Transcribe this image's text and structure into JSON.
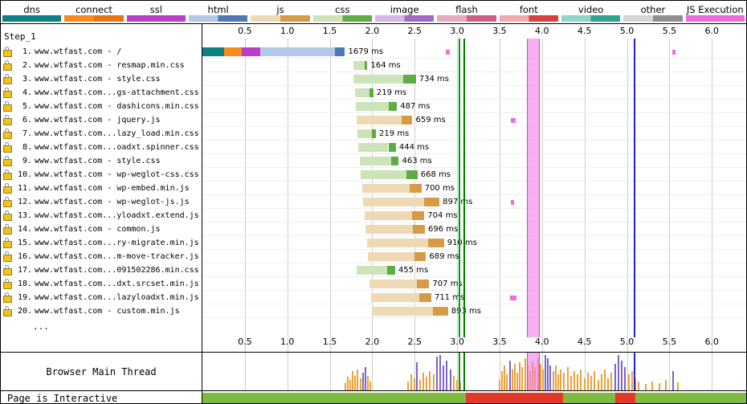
{
  "step_label": "Step_1",
  "ellipsis": "...",
  "labels": {
    "main_thread": "Browser Main Thread",
    "interactive": "Page is Interactive"
  },
  "legend": [
    {
      "label": "dns",
      "c1": "#0d8084",
      "c2": "#0d8084"
    },
    {
      "label": "connect",
      "c1": "#f78a1d",
      "c2": "#e87511"
    },
    {
      "label": "ssl",
      "c1": "#bb3ec7",
      "c2": "#bb3ec7"
    },
    {
      "label": "html",
      "c1": "#b3c7e6",
      "c2": "#4f79b5"
    },
    {
      "label": "js",
      "c1": "#eed9b5",
      "c2": "#d89b45"
    },
    {
      "label": "css",
      "c1": "#cde3ba",
      "c2": "#5cad44"
    },
    {
      "label": "image",
      "c1": "#d5b6e3",
      "c2": "#a468c8"
    },
    {
      "label": "flash",
      "c1": "#e9a8bb",
      "c2": "#cf5f82"
    },
    {
      "label": "font",
      "c1": "#f2a9a9",
      "c2": "#d94040"
    },
    {
      "label": "video",
      "c1": "#8fd5c9",
      "c2": "#2fa392"
    },
    {
      "label": "other",
      "c1": "#d5d5d5",
      "c2": "#8f8f8f"
    },
    {
      "label": "JS Execution",
      "c1": "#f06ae0",
      "c2": "#f06ae0"
    }
  ],
  "colors": {
    "dns": "#0d8084",
    "connect": "#f78a1d",
    "ssl": "#bb3ec7",
    "html_l": "#b3c7e6",
    "html_d": "#4f79b5",
    "js_l": "#eed9b5",
    "js_d": "#d89b45",
    "css_l": "#cde3ba",
    "css_d": "#5cad44",
    "jsexec": "#f06ae0",
    "grid": "#cccccc",
    "marker_render": "#00a000",
    "marker_fcp": "#007a00",
    "marker_dcl": "rgba(240,122,232,0.6)",
    "marker_dcl_edge": "#d944cf",
    "marker_onload": "#2323cc",
    "mt_script": "#e8a33d",
    "mt_layout": "#7d64c9",
    "int_ok": "#7fba41",
    "int_busy": "#e23a28"
  },
  "chart_data": {
    "type": "waterfall",
    "title": "WebPageTest request waterfall - Step_1",
    "time_unit": "seconds",
    "x_range_s": [
      0,
      6.42
    ],
    "axis_ticks": [
      "0.5",
      "1.0",
      "1.5",
      "2.0",
      "2.5",
      "3.0",
      "3.5",
      "4.0",
      "4.5",
      "5.0",
      "5.5",
      "6.0"
    ],
    "requests": [
      {
        "n": "1.",
        "url": "www.wtfast.com - /",
        "type": "html",
        "label": "1679 ms",
        "start_ms": 0,
        "dur_ms": 1679,
        "phases": [
          [
            "dns",
            0,
            255
          ],
          [
            "connect",
            255,
            460
          ],
          [
            "ssl",
            460,
            680
          ],
          [
            "ttfb",
            680,
            1560
          ],
          [
            "dl",
            1560,
            1679
          ]
        ]
      },
      {
        "n": "2.",
        "url": "www.wtfast.com - resmap.min.css",
        "type": "css",
        "label": "164 ms",
        "start_ms": 1780,
        "dur_ms": 164
      },
      {
        "n": "3.",
        "url": "www.wtfast.com - style.css",
        "type": "css",
        "label": "734 ms",
        "start_ms": 1780,
        "dur_ms": 734
      },
      {
        "n": "4.",
        "url": "www.wtfast.com...gs-attachment.css",
        "type": "css",
        "label": "219 ms",
        "start_ms": 1795,
        "dur_ms": 219
      },
      {
        "n": "5.",
        "url": "www.wtfast.com - dashicons.min.css",
        "type": "css",
        "label": "487 ms",
        "start_ms": 1805,
        "dur_ms": 487
      },
      {
        "n": "6.",
        "url": "www.wtfast.com - jquery.js",
        "type": "js",
        "label": "659 ms",
        "start_ms": 1815,
        "dur_ms": 659
      },
      {
        "n": "7.",
        "url": "www.wtfast.com...lazy_load.min.css",
        "type": "css",
        "label": "219 ms",
        "start_ms": 1825,
        "dur_ms": 219
      },
      {
        "n": "8.",
        "url": "www.wtfast.com...oadxt.spinner.css",
        "type": "css",
        "label": "444 ms",
        "start_ms": 1835,
        "dur_ms": 444
      },
      {
        "n": "9.",
        "url": "www.wtfast.com - style.css",
        "type": "css",
        "label": "463 ms",
        "start_ms": 1850,
        "dur_ms": 463
      },
      {
        "n": "10.",
        "url": "www.wtfast.com - wp-weglot-css.css",
        "type": "css",
        "label": "668 ms",
        "start_ms": 1865,
        "dur_ms": 668
      },
      {
        "n": "11.",
        "url": "www.wtfast.com - wp-embed.min.js",
        "type": "js",
        "label": "700 ms",
        "start_ms": 1880,
        "dur_ms": 700
      },
      {
        "n": "12.",
        "url": "www.wtfast.com - wp-weglot-js.js",
        "type": "js",
        "label": "897 ms",
        "start_ms": 1895,
        "dur_ms": 897
      },
      {
        "n": "13.",
        "url": "www.wtfast.com...yloadxt.extend.js",
        "type": "js",
        "label": "704 ms",
        "start_ms": 1910,
        "dur_ms": 704
      },
      {
        "n": "14.",
        "url": "www.wtfast.com - common.js",
        "type": "js",
        "label": "696 ms",
        "start_ms": 1925,
        "dur_ms": 696
      },
      {
        "n": "15.",
        "url": "www.wtfast.com...ry-migrate.min.js",
        "type": "js",
        "label": "910 ms",
        "start_ms": 1935,
        "dur_ms": 910
      },
      {
        "n": "16.",
        "url": "www.wtfast.com...m-move-tracker.js",
        "type": "js",
        "label": "689 ms",
        "start_ms": 1945,
        "dur_ms": 689
      },
      {
        "n": "17.",
        "url": "www.wtfast.com...091502286.min.css",
        "type": "css",
        "label": "455 ms",
        "start_ms": 1815,
        "dur_ms": 455
      },
      {
        "n": "18.",
        "url": "www.wtfast.com...dxt.srcset.min.js",
        "type": "js",
        "label": "707 ms",
        "start_ms": 1965,
        "dur_ms": 707
      },
      {
        "n": "19.",
        "url": "www.wtfast.com...lazyloadxt.min.js",
        "type": "js",
        "label": "711 ms",
        "start_ms": 1985,
        "dur_ms": 711
      },
      {
        "n": "20.",
        "url": "www.wtfast.com - custom.min.js",
        "type": "js",
        "label": "893 ms",
        "start_ms": 2000,
        "dur_ms": 893
      }
    ],
    "js_execution_marks": [
      {
        "row": 1,
        "t_ms": [
          2870,
          2910
        ]
      },
      {
        "row": 1,
        "t_ms": [
          5530,
          5570
        ]
      },
      {
        "row": 6,
        "t_ms": [
          3630,
          3690
        ]
      },
      {
        "row": 12,
        "t_ms": [
          3630,
          3670
        ]
      },
      {
        "row": 19,
        "t_ms": [
          3620,
          3700
        ]
      }
    ],
    "markers": {
      "start_render_s": 3.02,
      "first_contentful_paint_s": 3.075,
      "dom_content_loaded_s": [
        3.825,
        3.975
      ],
      "on_load_s": 5.08
    },
    "main_thread_activity": {
      "ylabel": "Browser Main Thread",
      "series": [
        [
          1.68,
          0.2,
          "s"
        ],
        [
          1.71,
          0.38,
          "s"
        ],
        [
          1.74,
          0.3,
          "s"
        ],
        [
          1.77,
          0.55,
          "s"
        ],
        [
          1.8,
          0.42,
          "s"
        ],
        [
          1.83,
          0.6,
          "s"
        ],
        [
          1.86,
          0.35,
          "s"
        ],
        [
          1.89,
          0.5,
          "l"
        ],
        [
          1.92,
          0.65,
          "l"
        ],
        [
          1.95,
          0.4,
          "s"
        ],
        [
          1.98,
          0.25,
          "s"
        ],
        [
          2.42,
          0.25,
          "s"
        ],
        [
          2.46,
          0.45,
          "s"
        ],
        [
          2.5,
          0.35,
          "s"
        ],
        [
          2.53,
          0.8,
          "l"
        ],
        [
          2.56,
          0.3,
          "s"
        ],
        [
          2.6,
          0.5,
          "s"
        ],
        [
          2.64,
          0.38,
          "s"
        ],
        [
          2.68,
          0.55,
          "s"
        ],
        [
          2.72,
          0.45,
          "s"
        ],
        [
          2.76,
          0.95,
          "l"
        ],
        [
          2.8,
          1.0,
          "l"
        ],
        [
          2.84,
          0.7,
          "l"
        ],
        [
          2.88,
          0.85,
          "l"
        ],
        [
          2.92,
          0.6,
          "l"
        ],
        [
          2.96,
          0.4,
          "s"
        ],
        [
          3.0,
          0.3,
          "s"
        ],
        [
          3.04,
          0.22,
          "s"
        ],
        [
          3.5,
          0.3,
          "s"
        ],
        [
          3.53,
          0.55,
          "s"
        ],
        [
          3.56,
          0.7,
          "s"
        ],
        [
          3.59,
          0.45,
          "s"
        ],
        [
          3.62,
          0.85,
          "l"
        ],
        [
          3.65,
          0.6,
          "s"
        ],
        [
          3.68,
          0.75,
          "s"
        ],
        [
          3.71,
          0.5,
          "s"
        ],
        [
          3.74,
          0.8,
          "s"
        ],
        [
          3.77,
          0.65,
          "s"
        ],
        [
          3.8,
          0.9,
          "s"
        ],
        [
          3.83,
          0.7,
          "s"
        ],
        [
          3.86,
          0.55,
          "s"
        ],
        [
          3.89,
          0.8,
          "s"
        ],
        [
          3.92,
          0.65,
          "s"
        ],
        [
          3.95,
          0.9,
          "s"
        ],
        [
          3.98,
          0.75,
          "s"
        ],
        [
          4.01,
          0.6,
          "s"
        ],
        [
          4.04,
          1.0,
          "l"
        ],
        [
          4.07,
          0.9,
          "l"
        ],
        [
          4.1,
          0.7,
          "l"
        ],
        [
          4.13,
          0.55,
          "s"
        ],
        [
          4.16,
          0.7,
          "s"
        ],
        [
          4.19,
          0.45,
          "s"
        ],
        [
          4.22,
          0.6,
          "s"
        ],
        [
          4.26,
          0.5,
          "s"
        ],
        [
          4.3,
          0.65,
          "s"
        ],
        [
          4.34,
          0.4,
          "s"
        ],
        [
          4.38,
          0.55,
          "s"
        ],
        [
          4.42,
          0.45,
          "s"
        ],
        [
          4.46,
          0.6,
          "s"
        ],
        [
          4.5,
          0.35,
          "s"
        ],
        [
          4.54,
          0.5,
          "s"
        ],
        [
          4.58,
          0.4,
          "s"
        ],
        [
          4.62,
          0.55,
          "s"
        ],
        [
          4.66,
          0.3,
          "s"
        ],
        [
          4.7,
          0.45,
          "s"
        ],
        [
          4.74,
          0.6,
          "s"
        ],
        [
          4.78,
          0.35,
          "s"
        ],
        [
          4.82,
          0.5,
          "s"
        ],
        [
          4.86,
          0.75,
          "l"
        ],
        [
          4.9,
          1.0,
          "l"
        ],
        [
          4.94,
          0.85,
          "l"
        ],
        [
          4.98,
          0.65,
          "l"
        ],
        [
          5.02,
          0.45,
          "s"
        ],
        [
          5.06,
          0.55,
          "s"
        ],
        [
          5.1,
          0.35,
          "s"
        ],
        [
          5.14,
          0.25,
          "s"
        ],
        [
          5.22,
          0.18,
          "s"
        ],
        [
          5.3,
          0.25,
          "s"
        ],
        [
          5.38,
          0.2,
          "s"
        ],
        [
          5.46,
          0.3,
          "s"
        ],
        [
          5.54,
          0.55,
          "l"
        ],
        [
          5.6,
          0.22,
          "s"
        ]
      ]
    },
    "page_interactive": [
      {
        "t": [
          0,
          3.1
        ],
        "state": "interactive"
      },
      {
        "t": [
          3.1,
          4.25
        ],
        "state": "blocked"
      },
      {
        "t": [
          4.25,
          4.86
        ],
        "state": "interactive"
      },
      {
        "t": [
          4.86,
          5.1
        ],
        "state": "blocked"
      },
      {
        "t": [
          5.1,
          6.42
        ],
        "state": "interactive"
      }
    ]
  }
}
